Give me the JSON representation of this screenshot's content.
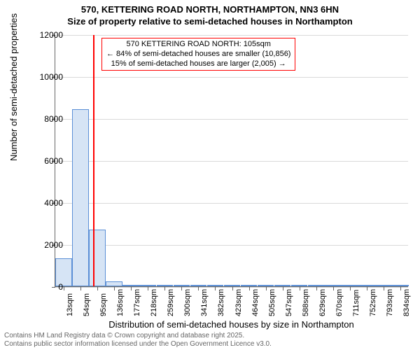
{
  "title": {
    "line1": "570, KETTERING ROAD NORTH, NORTHAMPTON, NN3 6HN",
    "line2": "Size of property relative to semi-detached houses in Northampton"
  },
  "axes": {
    "ylabel": "Number of semi-detached properties",
    "xlabel": "Distribution of semi-detached houses by size in Northampton",
    "ymax": 12000,
    "ytick_step": 2000,
    "yticks": [
      0,
      2000,
      4000,
      6000,
      8000,
      10000,
      12000
    ]
  },
  "chart": {
    "type": "histogram",
    "bar_fill": "#d6e4f5",
    "bar_border": "#5b8fd6",
    "grid_color": "#d9d9d9",
    "background_color": "#ffffff",
    "marker_color": "#ff0000",
    "marker_x_value": 105,
    "categories": [
      "13sqm",
      "54sqm",
      "95sqm",
      "136sqm",
      "177sqm",
      "218sqm",
      "259sqm",
      "300sqm",
      "341sqm",
      "382sqm",
      "423sqm",
      "464sqm",
      "505sqm",
      "547sqm",
      "588sqm",
      "629sqm",
      "670sqm",
      "711sqm",
      "752sqm",
      "793sqm",
      "834sqm"
    ],
    "values": [
      1350,
      8450,
      2700,
      250,
      80,
      40,
      30,
      20,
      15,
      10,
      8,
      6,
      5,
      4,
      3,
      3,
      2,
      2,
      2,
      1,
      1
    ]
  },
  "annotation": {
    "line1": "570 KETTERING ROAD NORTH: 105sqm",
    "line2": "← 84% of semi-detached houses are smaller (10,856)",
    "line3": "15% of semi-detached houses are larger (2,005) →"
  },
  "footer": {
    "line1": "Contains HM Land Registry data © Crown copyright and database right 2025.",
    "line2": "Contains public sector information licensed under the Open Government Licence v3.0."
  }
}
